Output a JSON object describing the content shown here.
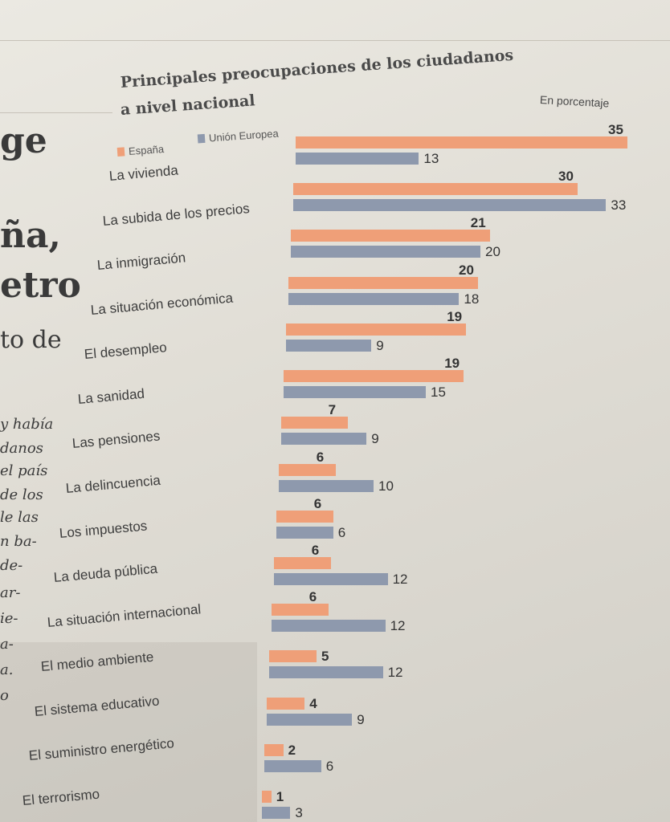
{
  "page": {
    "side_fragments": [
      "ge",
      "ña,",
      "etro",
      "to de",
      "y había",
      "danos",
      "el país",
      "de los",
      "le las",
      "n ba-",
      "de-",
      "ar-",
      "ie-",
      "a-",
      "a.",
      "o"
    ]
  },
  "chart_data": {
    "type": "bar",
    "orientation": "horizontal",
    "title": "Principales preocupaciones de los ciudadanos a nivel nacional",
    "title_line1": "Principales preocupaciones de los ciudadanos",
    "title_line2": "a nivel nacional",
    "unit_label": "En porcentaje",
    "categories": [
      "La vivienda",
      "La subida de los precios",
      "La inmigración",
      "La situación económica",
      "El desempleo",
      "La sanidad",
      "Las pensiones",
      "La delincuencia",
      "Los impuestos",
      "La deuda pública",
      "La situación internacional",
      "El medio ambiente",
      "El sistema educativo",
      "El suministro energético",
      "El terrorismo"
    ],
    "series": [
      {
        "name": "España",
        "color": "#ef9f78",
        "values": [
          35,
          30,
          21,
          20,
          19,
          19,
          7,
          6,
          6,
          6,
          6,
          5,
          4,
          2,
          1
        ]
      },
      {
        "name": "Unión Europea",
        "color": "#8e99ad",
        "values": [
          13,
          33,
          20,
          18,
          9,
          15,
          9,
          10,
          6,
          12,
          12,
          12,
          9,
          6,
          3
        ]
      }
    ],
    "xlim": [
      0,
      35
    ],
    "grid": false,
    "legend_position": "top-left"
  }
}
